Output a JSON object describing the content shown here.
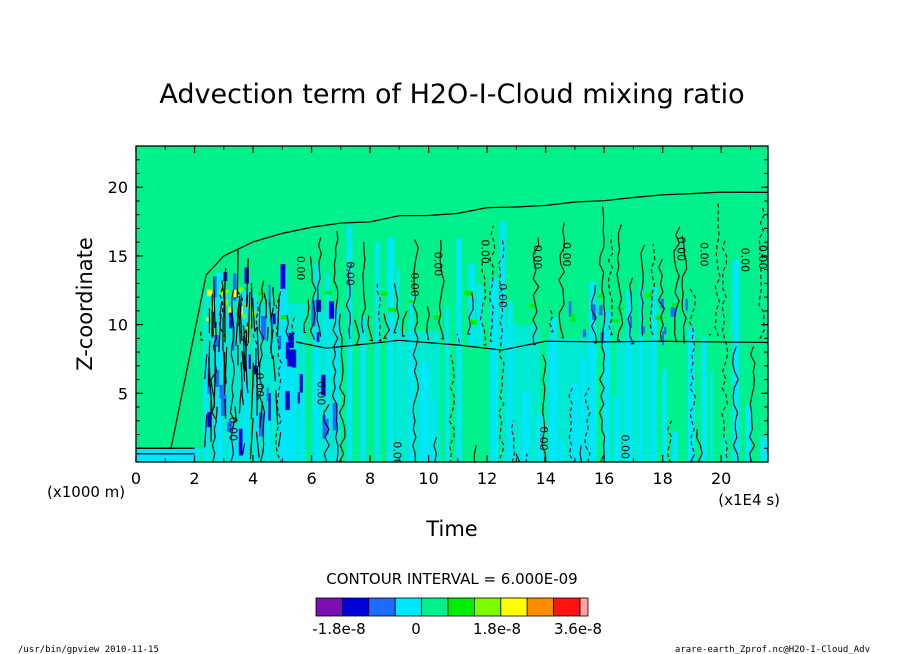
{
  "chart_data": {
    "type": "heatmap",
    "title": "Advection term of H2O-I-Cloud mixing ratio",
    "xlabel": "Time",
    "ylabel": "Z-coordinate",
    "x_unit_label": "(x1E4 s)",
    "y_unit_label": "(x1000 m)",
    "xlim": [
      0,
      21.6
    ],
    "ylim": [
      0,
      23
    ],
    "x_ticks": [
      0,
      2,
      4,
      6,
      8,
      10,
      12,
      14,
      16,
      18,
      20
    ],
    "y_ticks": [
      5,
      10,
      15,
      20
    ],
    "contour_interval_text": "CONTOUR INTERVAL = 6.000E-09",
    "contour_label": "0.00",
    "cloud_top_profile": [
      {
        "x": 1.2,
        "z": 1.0
      },
      {
        "x": 2.4,
        "z": 13.5
      },
      {
        "x": 3.0,
        "z": 15.0
      },
      {
        "x": 4.0,
        "z": 16.0
      },
      {
        "x": 5.0,
        "z": 16.6
      },
      {
        "x": 6.0,
        "z": 17.0
      },
      {
        "x": 7.0,
        "z": 17.4
      },
      {
        "x": 8.0,
        "z": 17.6
      },
      {
        "x": 9.0,
        "z": 17.8
      },
      {
        "x": 10.0,
        "z": 18.0
      },
      {
        "x": 11.0,
        "z": 18.2
      },
      {
        "x": 12.0,
        "z": 18.4
      },
      {
        "x": 13.0,
        "z": 18.6
      },
      {
        "x": 14.0,
        "z": 18.8
      },
      {
        "x": 15.0,
        "z": 19.0
      },
      {
        "x": 16.0,
        "z": 19.1
      },
      {
        "x": 17.0,
        "z": 19.2
      },
      {
        "x": 18.0,
        "z": 19.4
      },
      {
        "x": 19.0,
        "z": 19.5
      },
      {
        "x": 20.0,
        "z": 19.6
      },
      {
        "x": 21.6,
        "z": 19.6
      }
    ],
    "cloud_base_profile": [
      {
        "x": 5.5,
        "z": 8.8
      },
      {
        "x": 6.5,
        "z": 8.2
      },
      {
        "x": 7.5,
        "z": 8.6
      },
      {
        "x": 9.0,
        "z": 8.8
      },
      {
        "x": 11.0,
        "z": 8.6
      },
      {
        "x": 12.5,
        "z": 8.2
      },
      {
        "x": 14.0,
        "z": 8.8
      },
      {
        "x": 16.0,
        "z": 8.8
      },
      {
        "x": 18.0,
        "z": 8.8
      },
      {
        "x": 21.6,
        "z": 8.8
      }
    ],
    "legend": {
      "colors": [
        "#7a0fb4",
        "#0000dc",
        "#1e6cff",
        "#00e6ff",
        "#00f08c",
        "#00ee00",
        "#7cfc00",
        "#ffff00",
        "#ff8c00",
        "#ff1414",
        "#ffa0a0"
      ],
      "labels": [
        "-1.8e-8",
        "0",
        "1.8e-8",
        "3.6e-8"
      ]
    },
    "background_color": "#00f08c",
    "contour_color": "#000000"
  },
  "footer": {
    "left": "/usr/bin/gpview   2010-11-15",
    "right": "arare-earth_Zprof.nc@H2O-I-Cloud_Adv"
  }
}
